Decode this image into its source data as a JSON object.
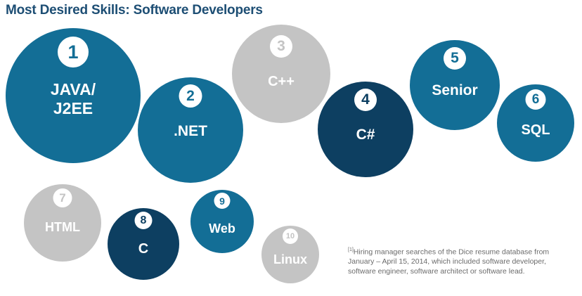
{
  "title": "Most Desired Skills: Software Developers",
  "colors": {
    "light_blue": "#136e96",
    "dark_blue": "#0d3f61",
    "gray": "#c4c4c4",
    "title": "#1d4e74"
  },
  "skills": [
    {
      "rank": "1",
      "name": "JAVA/\nJ2EE",
      "color": "light_blue"
    },
    {
      "rank": "2",
      "name": ".NET",
      "color": "light_blue"
    },
    {
      "rank": "3",
      "name": "C++",
      "color": "gray"
    },
    {
      "rank": "4",
      "name": "C#",
      "color": "dark_blue"
    },
    {
      "rank": "5",
      "name": "Senior",
      "color": "light_blue"
    },
    {
      "rank": "6",
      "name": "SQL",
      "color": "light_blue"
    },
    {
      "rank": "7",
      "name": "HTML",
      "color": "gray"
    },
    {
      "rank": "8",
      "name": "C",
      "color": "dark_blue"
    },
    {
      "rank": "9",
      "name": "Web",
      "color": "light_blue"
    },
    {
      "rank": "10",
      "name": "Linux",
      "color": "gray"
    }
  ],
  "footnote": {
    "marker": "[1]",
    "text": "Hiring manager searches of the Dice resume database from January – April 15, 2014, which included software developer, software engineer, software architect or software lead."
  }
}
